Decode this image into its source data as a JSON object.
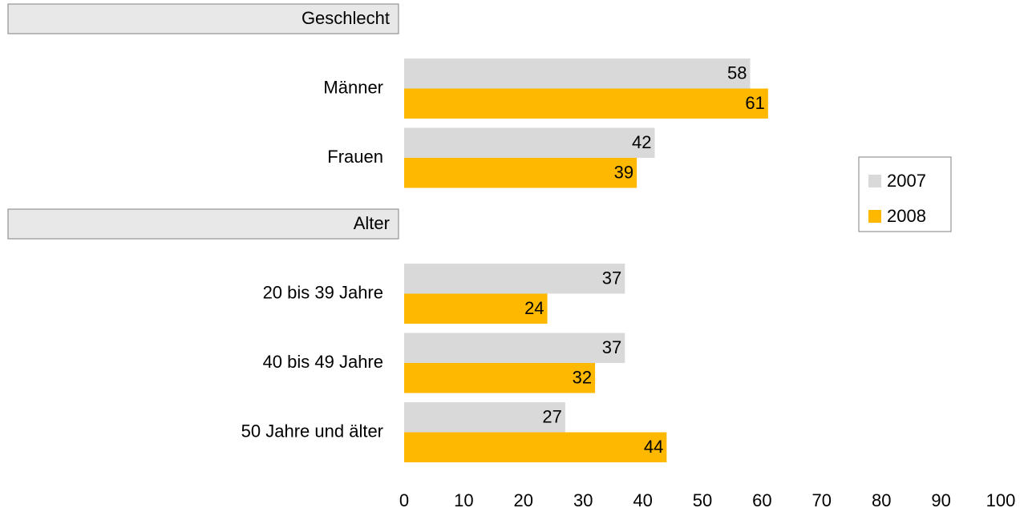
{
  "chart_data": {
    "type": "bar",
    "orientation": "horizontal",
    "groups": [
      {
        "name": "Geschlecht",
        "categories": [
          "Männer",
          "Frauen"
        ]
      },
      {
        "name": "Alter",
        "categories": [
          "20 bis 39 Jahre",
          "40 bis 49 Jahre",
          "50 Jahre und älter"
        ]
      }
    ],
    "series": [
      {
        "name": "2007",
        "color": "#d9d9d9",
        "values": [
          58,
          42,
          37,
          37,
          27
        ]
      },
      {
        "name": "2008",
        "color": "#ffb800",
        "values": [
          61,
          39,
          24,
          32,
          44
        ]
      }
    ],
    "xlim": [
      0,
      100
    ],
    "xticks": [
      0,
      10,
      20,
      30,
      40,
      50,
      60,
      70,
      80,
      90,
      100
    ],
    "grid": false,
    "legend": "right"
  }
}
